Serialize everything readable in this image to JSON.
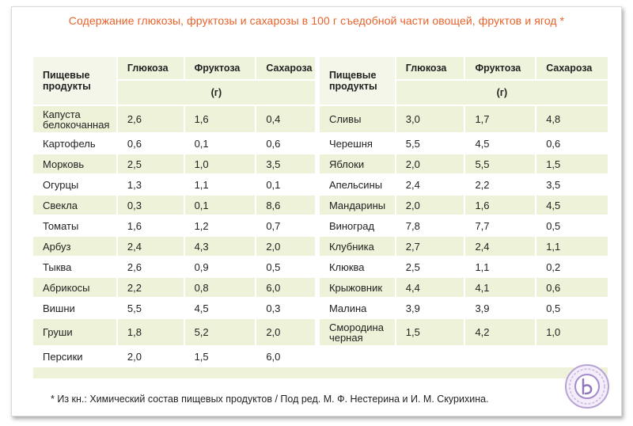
{
  "title": "Содержание глюкозы, фруктозы и сахарозы в 100 г съедобной части овощей, фруктов и ягод *",
  "headers": {
    "food": "Пищевые продукты",
    "glucose": "Глюкоза",
    "fructose": "Фруктоза",
    "sucrose": "Сахароза",
    "unit": "(г)"
  },
  "left_rows": [
    {
      "name": "Капуста белокочанная",
      "glucose": "2,6",
      "fructose": "1,6",
      "sucrose": "0,4"
    },
    {
      "name": "Картофель",
      "glucose": "0,6",
      "fructose": "0,1",
      "sucrose": "0,6"
    },
    {
      "name": "Морковь",
      "glucose": "2,5",
      "fructose": "1,0",
      "sucrose": "3,5"
    },
    {
      "name": "Огурцы",
      "glucose": "1,3",
      "fructose": "1,1",
      "sucrose": "0,1"
    },
    {
      "name": "Свекла",
      "glucose": "0,3",
      "fructose": "0,1",
      "sucrose": "8,6"
    },
    {
      "name": "Томаты",
      "glucose": "1,6",
      "fructose": "1,2",
      "sucrose": "0,7"
    },
    {
      "name": "Арбуз",
      "glucose": "2,4",
      "fructose": "4,3",
      "sucrose": "2,0"
    },
    {
      "name": "Тыква",
      "glucose": "2,6",
      "fructose": "0,9",
      "sucrose": "0,5"
    },
    {
      "name": "Абрикосы",
      "glucose": "2,2",
      "fructose": "0,8",
      "sucrose": "6,0"
    },
    {
      "name": "Вишни",
      "glucose": "5,5",
      "fructose": "4,5",
      "sucrose": "0,3"
    },
    {
      "name": "Груши",
      "glucose": "1,8",
      "fructose": "5,2",
      "sucrose": "2,0"
    },
    {
      "name": "Персики",
      "glucose": "2,0",
      "fructose": "1,5",
      "sucrose": "6,0"
    }
  ],
  "right_rows": [
    {
      "name": "Сливы",
      "glucose": "3,0",
      "fructose": "1,7",
      "sucrose": "4,8"
    },
    {
      "name": "Черешня",
      "glucose": "5,5",
      "fructose": "4,5",
      "sucrose": "0,6"
    },
    {
      "name": "Яблоки",
      "glucose": "2,0",
      "fructose": "5,5",
      "sucrose": "1,5"
    },
    {
      "name": "Апельсины",
      "glucose": "2,4",
      "fructose": "2,2",
      "sucrose": "3,5"
    },
    {
      "name": "Мандарины",
      "glucose": "2,0",
      "fructose": "1,6",
      "sucrose": "4,5"
    },
    {
      "name": "Виноград",
      "glucose": "7,8",
      "fructose": "7,7",
      "sucrose": "0,5"
    },
    {
      "name": "Клубника",
      "glucose": "2,7",
      "fructose": "2,4",
      "sucrose": "1,1"
    },
    {
      "name": "Клюква",
      "glucose": "2,5",
      "fructose": "1,1",
      "sucrose": "0,2"
    },
    {
      "name": "Крыжовник",
      "glucose": "4,4",
      "fructose": "4,1",
      "sucrose": "0,6"
    },
    {
      "name": "Малина",
      "glucose": "3,9",
      "fructose": "3,9",
      "sucrose": "0,5"
    },
    {
      "name": "Смородина черная",
      "glucose": "1,5",
      "fructose": "4,2",
      "sucrose": "1,0"
    },
    {
      "name": "",
      "glucose": "",
      "fructose": "",
      "sucrose": ""
    }
  ],
  "footnote": "* Из кн.: Химический состав пищевых продуктов / Под ред. М. Ф. Нестерина и И. М. Скурихина.",
  "colors": {
    "title": "#e8622a",
    "header_bg": "#eef3dc",
    "row_shade": "#eef2d8"
  },
  "seal_icon": "seal-logo-icon"
}
